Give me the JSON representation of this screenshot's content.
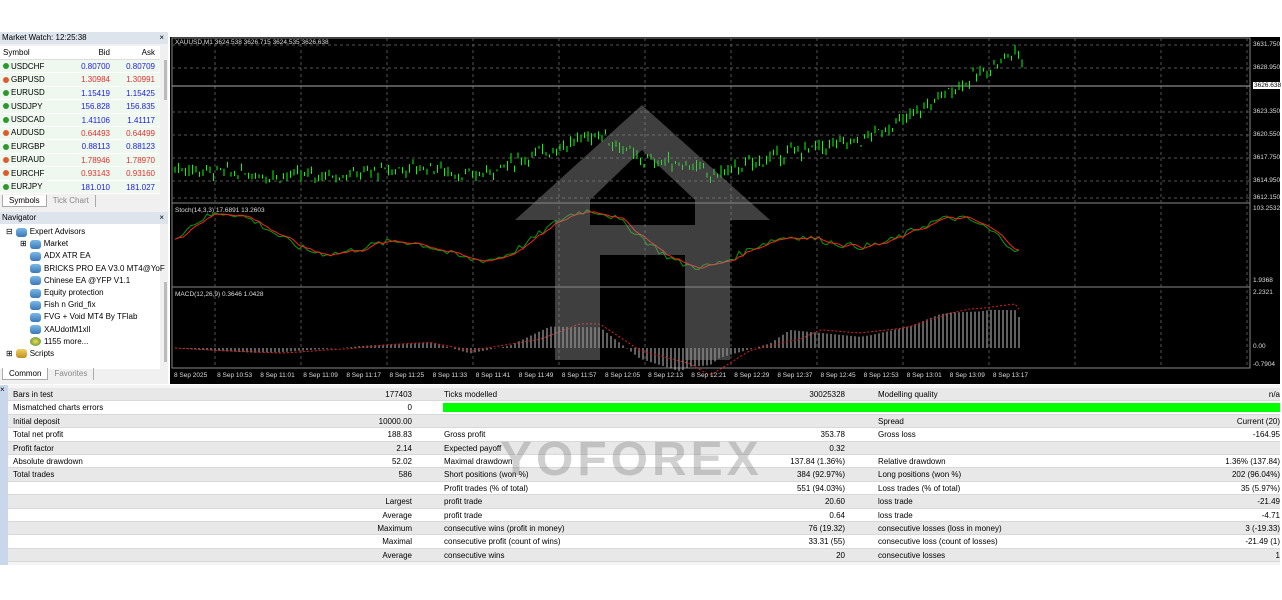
{
  "market_watch": {
    "title": "Market Watch: 12:25:38",
    "headers": [
      "Symbol",
      "Bid",
      "Ask"
    ],
    "rows": [
      {
        "symbol": "USDCHF",
        "bid": "0.80700",
        "ask": "0.80709",
        "dir": "up"
      },
      {
        "symbol": "GBPUSD",
        "bid": "1.30984",
        "ask": "1.30991",
        "dir": "dn"
      },
      {
        "symbol": "EURUSD",
        "bid": "1.15419",
        "ask": "1.15425",
        "dir": "up"
      },
      {
        "symbol": "USDJPY",
        "bid": "156.828",
        "ask": "156.835",
        "dir": "up"
      },
      {
        "symbol": "USDCAD",
        "bid": "1.41106",
        "ask": "1.41117",
        "dir": "up"
      },
      {
        "symbol": "AUDUSD",
        "bid": "0.64493",
        "ask": "0.64499",
        "dir": "dn"
      },
      {
        "symbol": "EURGBP",
        "bid": "0.88113",
        "ask": "0.88123",
        "dir": "up"
      },
      {
        "symbol": "EURAUD",
        "bid": "1.78946",
        "ask": "1.78970",
        "dir": "dn"
      },
      {
        "symbol": "EURCHF",
        "bid": "0.93143",
        "ask": "0.93160",
        "dir": "dn"
      },
      {
        "symbol": "EURJPY",
        "bid": "181.010",
        "ask": "181.027",
        "dir": "up"
      }
    ],
    "tabs": [
      "Symbols",
      "Tick Chart"
    ]
  },
  "navigator": {
    "title": "Navigator",
    "root": "Expert Advisors",
    "items": [
      "Market",
      "ADX ATR EA",
      "BRICKS PRO EA V3.0 MT4@YoF",
      "Chinese EA @YFP V1.1",
      "Equity protection",
      "Fish n Grid_fix",
      "FVG + Void MT4 By TFlab",
      "XAUdotM1xll",
      "1155 more..."
    ],
    "scripts": "Scripts",
    "tabs": [
      "Common",
      "Favorites"
    ]
  },
  "chart": {
    "title": "XAUUSD,M1  3624.538 3626.715 3624.535 3626.638",
    "price_ticks": [
      "3631.750",
      "3628.950",
      "3626.638",
      "3623.350",
      "3620.550",
      "3617.750",
      "3614.950",
      "3612.150"
    ],
    "stoch_label": "Stoch(14,3,3) 17.6891 13.2603",
    "stoch_ticks": [
      "103.2532",
      "1.9368"
    ],
    "macd_label": "MACD(12,26,9) 0.3646 1.0428",
    "macd_ticks": [
      "2.2321",
      "0.00",
      "-0.7904"
    ],
    "time_ticks": [
      "8 Sep 2025",
      "8 Sep 10:53",
      "8 Sep 11:01",
      "8 Sep 11:09",
      "8 Sep 11:17",
      "8 Sep 11:25",
      "8 Sep 11:33",
      "8 Sep 11:41",
      "8 Sep 11:49",
      "8 Sep 11:57",
      "8 Sep 12:05",
      "8 Sep 12:13",
      "8 Sep 12:21",
      "8 Sep 12:29",
      "8 Sep 12:37",
      "8 Sep 12:45",
      "8 Sep 12:53",
      "8 Sep 13:01",
      "8 Sep 13:09",
      "8 Sep 13:17"
    ],
    "colors": {
      "bull": "#00ff00",
      "stoch_main": "#00a000",
      "stoch_signal": "#ff2020",
      "macd": "#c0c0c0"
    }
  },
  "report": {
    "rows": [
      [
        "Bars in test",
        "177403",
        "Ticks modelled",
        "30025328",
        "Modelling quality",
        "n/a"
      ],
      [
        "Mismatched charts errors",
        "0",
        "",
        "",
        "",
        ""
      ],
      [
        "Initial deposit",
        "10000.00",
        "",
        "",
        "Spread",
        "Current (20)"
      ],
      [
        "Total net profit",
        "188.83",
        "Gross profit",
        "353.78",
        "Gross loss",
        "-164.95"
      ],
      [
        "Profit factor",
        "2.14",
        "Expected payoff",
        "0.32",
        "",
        ""
      ],
      [
        "Absolute drawdown",
        "52.02",
        "Maximal drawdown",
        "137.84 (1.36%)",
        "Relative drawdown",
        "1.36% (137.84)"
      ],
      [
        "Total trades",
        "586",
        "Short positions (won %)",
        "384 (92.97%)",
        "Long positions (won %)",
        "202 (96.04%)"
      ],
      [
        "",
        "",
        "Profit trades (% of total)",
        "551 (94.03%)",
        "Loss trades (% of total)",
        "35 (5.97%)"
      ],
      [
        "",
        "Largest",
        "profit trade",
        "20.60",
        "loss trade",
        "-21.49"
      ],
      [
        "",
        "Average",
        "profit trade",
        "0.64",
        "loss trade",
        "-4.71"
      ],
      [
        "",
        "Maximum",
        "consecutive wins (profit in money)",
        "76 (19.32)",
        "consecutive losses (loss in money)",
        "3 (-19.33)"
      ],
      [
        "",
        "Maximal",
        "consecutive profit (count of wins)",
        "33.31 (55)",
        "consecutive loss (count of losses)",
        "-21.49 (1)"
      ],
      [
        "",
        "Average",
        "consecutive wins",
        "20",
        "consecutive losses",
        "1"
      ]
    ],
    "modelling_quality_bar_percent": 100,
    "bar_color": "#00ff00"
  },
  "watermark": {
    "text": "YOFOREX"
  }
}
